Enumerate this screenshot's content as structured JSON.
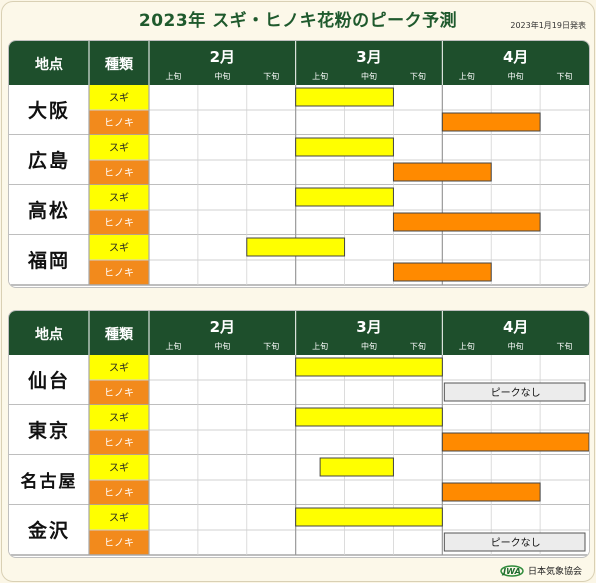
{
  "title": "2023年 スギ・ヒノキ花粉のピーク予測",
  "issued": "2023年1月19日発表",
  "organization": "日本気象協会",
  "logo_text": "JWA",
  "table_header": {
    "location": "地点",
    "type": "種類",
    "months": [
      "2月",
      "3月",
      "4月"
    ],
    "periods": [
      "上旬",
      "中旬",
      "下旬"
    ]
  },
  "no_peak_label": "ピークなし",
  "colors": {
    "header_bg": "#1e4f2c",
    "sugi_fill": "#ffff00",
    "hinoki_fill": "#ff8a00",
    "sugi_label_bg": "#ffff00",
    "hinoki_label_bg": "#f28a1c",
    "no_peak_bg": "#ececec"
  },
  "chart_data": [
    {
      "type": "gantt",
      "x_unit": "period index (0 = 2月上旬, 1 = 2月中旬, … 8 = 4月下旬)",
      "xlim": [
        0,
        9
      ],
      "locations": [
        {
          "name": "大阪",
          "rows": [
            {
              "type": "スギ",
              "start": 3,
              "end": 5
            },
            {
              "type": "ヒノキ",
              "start": 6,
              "end": 8
            }
          ]
        },
        {
          "name": "広島",
          "rows": [
            {
              "type": "スギ",
              "start": 3,
              "end": 5
            },
            {
              "type": "ヒノキ",
              "start": 5,
              "end": 7
            }
          ]
        },
        {
          "name": "高松",
          "rows": [
            {
              "type": "スギ",
              "start": 3,
              "end": 5
            },
            {
              "type": "ヒノキ",
              "start": 5,
              "end": 8
            }
          ]
        },
        {
          "name": "福岡",
          "rows": [
            {
              "type": "スギ",
              "start": 2,
              "end": 4
            },
            {
              "type": "ヒノキ",
              "start": 5,
              "end": 7
            }
          ]
        }
      ]
    },
    {
      "type": "gantt",
      "x_unit": "period index (0 = 2月上旬, 1 = 2月中旬, … 8 = 4月下旬)",
      "xlim": [
        0,
        9
      ],
      "locations": [
        {
          "name": "仙台",
          "rows": [
            {
              "type": "スギ",
              "start": 3,
              "end": 6
            },
            {
              "type": "ヒノキ",
              "no_peak": true
            }
          ]
        },
        {
          "name": "東京",
          "rows": [
            {
              "type": "スギ",
              "start": 3,
              "end": 6
            },
            {
              "type": "ヒノキ",
              "start": 6,
              "end": 9
            }
          ]
        },
        {
          "name": "名古屋",
          "rows": [
            {
              "type": "スギ",
              "start": 3.5,
              "end": 5
            },
            {
              "type": "ヒノキ",
              "start": 6,
              "end": 8
            }
          ]
        },
        {
          "name": "金沢",
          "rows": [
            {
              "type": "スギ",
              "start": 3,
              "end": 6
            },
            {
              "type": "ヒノキ",
              "no_peak": true
            }
          ]
        }
      ]
    }
  ]
}
